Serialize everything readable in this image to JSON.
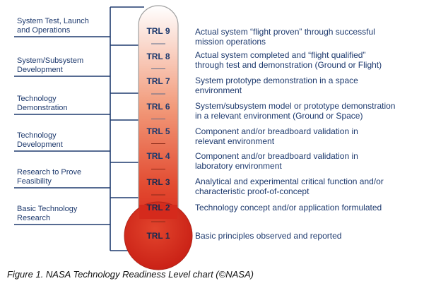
{
  "colors": {
    "line": "#1e3a6e",
    "text": "#1e3a6e",
    "thermo_top": "#ffffff",
    "thermo_mid": "#f29a7a",
    "thermo_bottom": "#d8281c",
    "outline": "#9a9a9a"
  },
  "phases": [
    {
      "label": "System Test, Launch\nand Operations"
    },
    {
      "label": "System/Subsystem\nDevelopment"
    },
    {
      "label": "Technology\nDemonstration"
    },
    {
      "label": "Technology\nDevelopment"
    },
    {
      "label": "Research to Prove\nFeasibility"
    },
    {
      "label": "Basic Technology\nResearch"
    }
  ],
  "levels": [
    {
      "trl": "TRL 9",
      "desc": "Actual system “flight proven” through successful\nmission operations"
    },
    {
      "trl": "TRL 8",
      "desc": "Actual system completed and “flight qualified”\nthrough test and demonstration (Ground or Flight)"
    },
    {
      "trl": "TRL 7",
      "desc": "System prototype demonstration in a space\nenvironment"
    },
    {
      "trl": "TRL 6",
      "desc": "System/subsystem model or prototype demonstration\nin a relevant environment (Ground or Space)"
    },
    {
      "trl": "TRL 5",
      "desc": "Component and/or breadboard validation in\nrelevant environment"
    },
    {
      "trl": "TRL 4",
      "desc": "Component and/or breadboard validation in\nlaboratory environment"
    },
    {
      "trl": "TRL 3",
      "desc": "Analytical and experimental critical function and/or\ncharacteristic proof-of-concept"
    },
    {
      "trl": "TRL 2",
      "desc": "Technology concept and/or application formulated"
    },
    {
      "trl": "TRL 1",
      "desc": "Basic principles observed and reported"
    }
  ],
  "caption": "Figure 1. NASA Technology Readiness Level chart (©NASA)"
}
